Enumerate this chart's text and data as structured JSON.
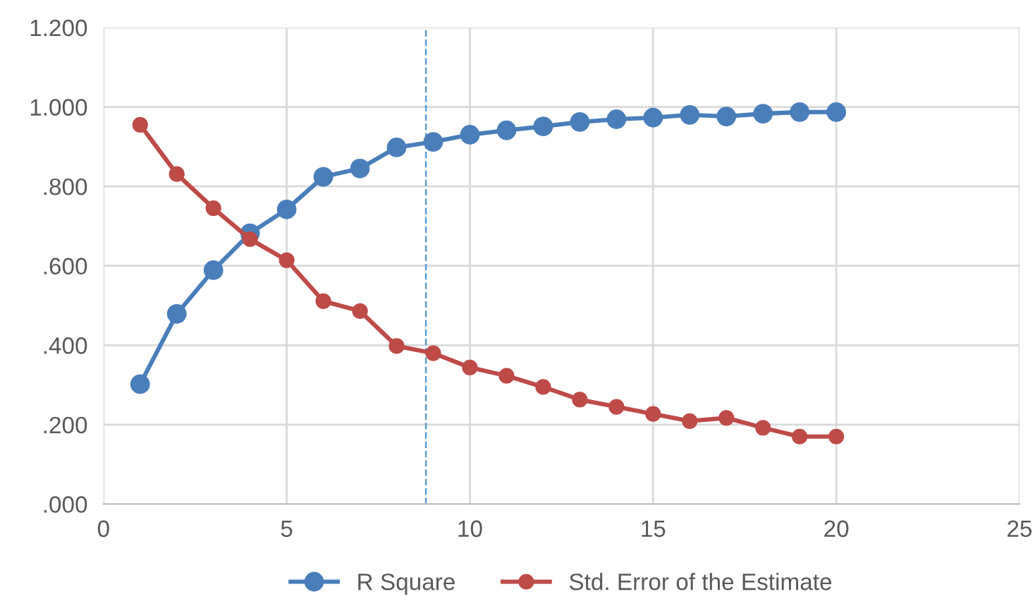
{
  "chart_data": {
    "type": "line",
    "x": [
      1,
      2,
      3,
      4,
      5,
      6,
      7,
      8,
      9,
      10,
      11,
      12,
      13,
      14,
      15,
      16,
      17,
      18,
      19,
      20
    ],
    "series": [
      {
        "name": "R Square",
        "color": "#4a7ebb",
        "values": [
          0.302,
          0.479,
          0.589,
          0.682,
          0.742,
          0.824,
          0.845,
          0.898,
          0.912,
          0.93,
          0.941,
          0.951,
          0.962,
          0.969,
          0.973,
          0.98,
          0.976,
          0.983,
          0.987,
          0.987
        ]
      },
      {
        "name": "Std. Error of the Estimate",
        "color": "#be4b48",
        "values": [
          0.955,
          0.831,
          0.745,
          0.667,
          0.614,
          0.511,
          0.486,
          0.398,
          0.38,
          0.344,
          0.323,
          0.295,
          0.263,
          0.245,
          0.227,
          0.209,
          0.217,
          0.192,
          0.17,
          0.17
        ]
      }
    ],
    "xlim": [
      0,
      25
    ],
    "xticks": [
      0,
      5,
      10,
      15,
      20,
      25
    ],
    "ylim": [
      0,
      1.2
    ],
    "yticks": [
      {
        "value": 0,
        "label": ".000"
      },
      {
        "value": 0.2,
        "label": ".200"
      },
      {
        "value": 0.4,
        "label": ".400"
      },
      {
        "value": 0.6,
        "label": ".600"
      },
      {
        "value": 0.8,
        "label": ".800"
      },
      {
        "value": 1.0,
        "label": "1.000"
      },
      {
        "value": 1.2,
        "label": "1.200"
      }
    ],
    "ref_lines": [
      {
        "axis": "x",
        "value": 8.8,
        "color": "#5b9bd5",
        "line_style": "dashed"
      }
    ],
    "grid": true,
    "legend": "bottom",
    "marker": "circle",
    "line_style": "solid"
  }
}
